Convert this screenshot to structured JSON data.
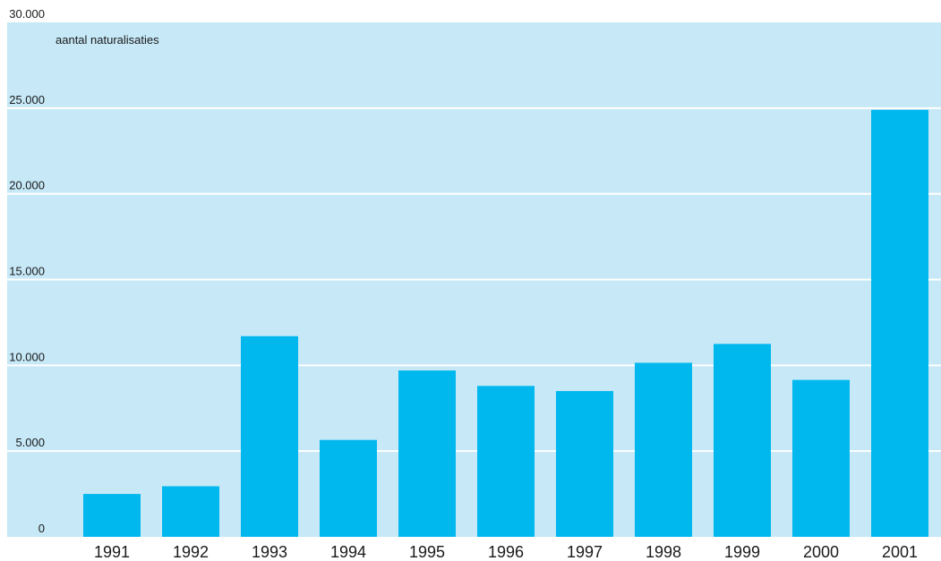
{
  "chart_data": {
    "type": "bar",
    "series_label": "aantal naturalisaties",
    "categories": [
      "1991",
      "1992",
      "1993",
      "1994",
      "1995",
      "1996",
      "1997",
      "1998",
      "1999",
      "2000",
      "2001"
    ],
    "values": [
      2500,
      2950,
      11700,
      5650,
      9700,
      8800,
      8500,
      10150,
      11250,
      9150,
      24900
    ],
    "ylim": [
      0,
      30000
    ],
    "yticks": [
      0,
      5000,
      10000,
      15000,
      20000,
      25000,
      30000
    ],
    "ytick_labels": [
      "0",
      "5.000",
      "10.000",
      "15.000",
      "20.000",
      "25.000",
      "30.000"
    ],
    "grid": true,
    "colors": {
      "plot_background": "#c6e8f7",
      "bar": "#00b8ee",
      "grid": "#ffffff"
    }
  }
}
